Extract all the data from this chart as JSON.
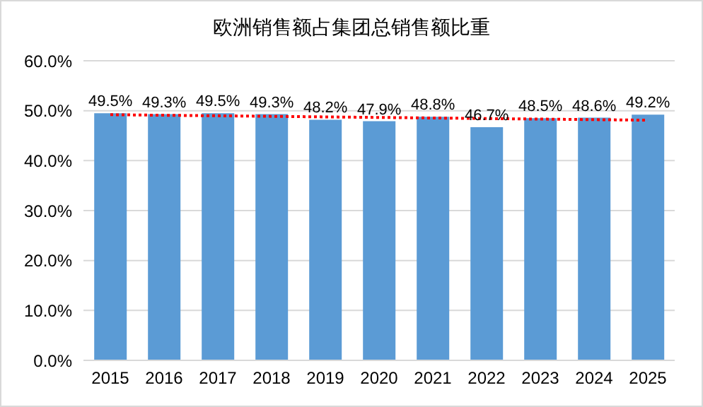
{
  "chart_data": {
    "type": "bar",
    "title": "欧洲销售额占集团总销售额比重",
    "categories": [
      "2015",
      "2016",
      "2017",
      "2018",
      "2019",
      "2020",
      "2021",
      "2022",
      "2023",
      "2024",
      "2025"
    ],
    "series": [
      {
        "color": "#5b9bd5",
        "values": [
          49.5,
          49.3,
          49.5,
          49.3,
          48.2,
          47.9,
          48.8,
          46.7,
          48.5,
          48.6,
          49.2
        ],
        "value_labels": [
          "49.5%",
          "49.3%",
          "49.5%",
          "49.3%",
          "48.2%",
          "47.9%",
          "48.8%",
          "46.7%",
          "48.5%",
          "48.6%",
          "49.2%"
        ]
      },
      {
        "type": "line",
        "color": "#ff0000",
        "line_style": "dotted",
        "values": [
          49.2,
          null,
          null,
          null,
          null,
          null,
          null,
          null,
          null,
          null,
          48.1
        ]
      }
    ],
    "ylim": [
      0,
      60
    ],
    "yticks": [
      {
        "value": 0,
        "label": "0.0%"
      },
      {
        "value": 10,
        "label": "10.0%"
      },
      {
        "value": 20,
        "label": "20.0%"
      },
      {
        "value": 30,
        "label": "30.0%"
      },
      {
        "value": 40,
        "label": "40.0%"
      },
      {
        "value": 50,
        "label": "50.0%"
      },
      {
        "value": 60,
        "label": "60.0%"
      }
    ],
    "grid": "y"
  }
}
